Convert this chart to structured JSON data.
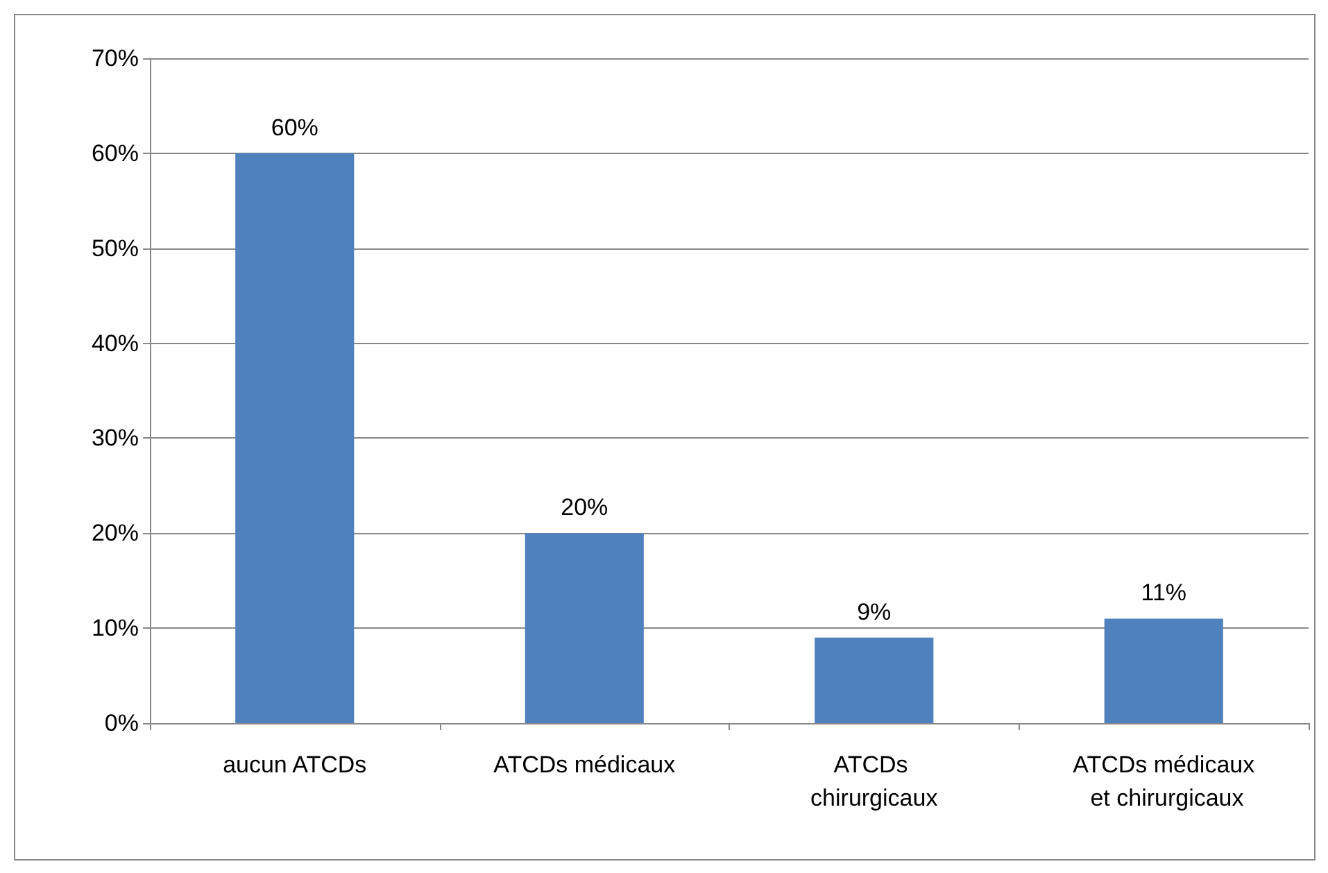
{
  "chart_data": {
    "type": "bar",
    "categories": [
      "aucun ATCDs",
      "ATCDs médicaux",
      "ATCDs chirurgicaux",
      "ATCDs médicaux et chirurgicaux"
    ],
    "values": [
      60,
      20,
      9,
      11
    ],
    "value_labels": [
      "60%",
      "20%",
      "9%",
      "11%"
    ],
    "color": "#4f81bd",
    "ylim": [
      0,
      70
    ],
    "yticks": [
      {
        "value": 0,
        "label": "0%"
      },
      {
        "value": 10,
        "label": "10%"
      },
      {
        "value": 20,
        "label": "20%"
      },
      {
        "value": 30,
        "label": "30%"
      },
      {
        "value": 40,
        "label": "40%"
      },
      {
        "value": 50,
        "label": "50%"
      },
      {
        "value": 60,
        "label": "60%"
      },
      {
        "value": 70,
        "label": "70%"
      }
    ],
    "grid": "y"
  }
}
